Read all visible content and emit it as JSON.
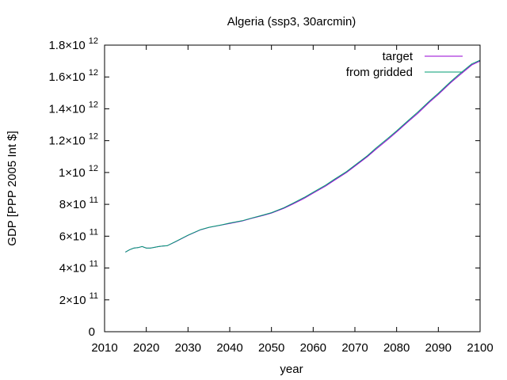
{
  "chart_data": {
    "type": "line",
    "title": "Algeria (ssp3, 30arcmin)",
    "xlabel": "year",
    "ylabel": "GDP [PPP 2005 Int $]",
    "xlim": [
      2010,
      2100
    ],
    "ylim": [
      0,
      1800000000000
    ],
    "grid": false,
    "legend_position": "top-right",
    "x_ticks": [
      {
        "value": 2010,
        "label": "2010"
      },
      {
        "value": 2020,
        "label": "2020"
      },
      {
        "value": 2030,
        "label": "2030"
      },
      {
        "value": 2040,
        "label": "2040"
      },
      {
        "value": 2050,
        "label": "2050"
      },
      {
        "value": 2060,
        "label": "2060"
      },
      {
        "value": 2070,
        "label": "2070"
      },
      {
        "value": 2080,
        "label": "2080"
      },
      {
        "value": 2090,
        "label": "2090"
      },
      {
        "value": 2100,
        "label": "2100"
      }
    ],
    "y_ticks": [
      {
        "value": 0,
        "mantissa": "0",
        "exp": ""
      },
      {
        "value": 200000000000,
        "mantissa": "2×10",
        "exp": "11"
      },
      {
        "value": 400000000000,
        "mantissa": "4×10",
        "exp": "11"
      },
      {
        "value": 600000000000,
        "mantissa": "6×10",
        "exp": "11"
      },
      {
        "value": 800000000000,
        "mantissa": "8×10",
        "exp": "11"
      },
      {
        "value": 1000000000000,
        "mantissa": "1×10",
        "exp": "12"
      },
      {
        "value": 1200000000000,
        "mantissa": "1.2×10",
        "exp": "12"
      },
      {
        "value": 1400000000000,
        "mantissa": "1.4×10",
        "exp": "12"
      },
      {
        "value": 1600000000000,
        "mantissa": "1.6×10",
        "exp": "12"
      },
      {
        "value": 1800000000000,
        "mantissa": "1.8×10",
        "exp": "12"
      }
    ],
    "x": [
      2015,
      2016,
      2017,
      2018,
      2019,
      2020,
      2021,
      2022,
      2023,
      2024,
      2025,
      2027,
      2030,
      2033,
      2035,
      2038,
      2040,
      2043,
      2045,
      2048,
      2050,
      2053,
      2055,
      2058,
      2060,
      2063,
      2065,
      2068,
      2070,
      2073,
      2075,
      2078,
      2080,
      2083,
      2085,
      2088,
      2090,
      2093,
      2095,
      2098,
      2100
    ],
    "series": [
      {
        "name": "target",
        "color": "#9400d3",
        "values": [
          500000000000,
          515000000000,
          525000000000,
          528000000000,
          535000000000,
          525000000000,
          525000000000,
          530000000000,
          535000000000,
          538000000000,
          540000000000,
          565000000000,
          605000000000,
          640000000000,
          655000000000,
          670000000000,
          680000000000,
          695000000000,
          710000000000,
          730000000000,
          745000000000,
          775000000000,
          800000000000,
          840000000000,
          870000000000,
          915000000000,
          950000000000,
          1000000000000,
          1040000000000,
          1100000000000,
          1145000000000,
          1210000000000,
          1255000000000,
          1325000000000,
          1370000000000,
          1445000000000,
          1490000000000,
          1565000000000,
          1610000000000,
          1675000000000,
          1700000000000
        ]
      },
      {
        "name": "from gridded",
        "color": "#009e73",
        "values": [
          500000000000,
          515000000000,
          525000000000,
          528000000000,
          535000000000,
          525000000000,
          525000000000,
          530000000000,
          535000000000,
          538000000000,
          540000000000,
          566000000000,
          606000000000,
          641000000000,
          656000000000,
          671000000000,
          682000000000,
          697000000000,
          712000000000,
          733000000000,
          748000000000,
          779000000000,
          805000000000,
          846000000000,
          876000000000,
          921000000000,
          956000000000,
          1006000000000,
          1046000000000,
          1106000000000,
          1152000000000,
          1217000000000,
          1262000000000,
          1332000000000,
          1378000000000,
          1452000000000,
          1498000000000,
          1572000000000,
          1618000000000,
          1682000000000,
          1705000000000
        ]
      }
    ]
  }
}
